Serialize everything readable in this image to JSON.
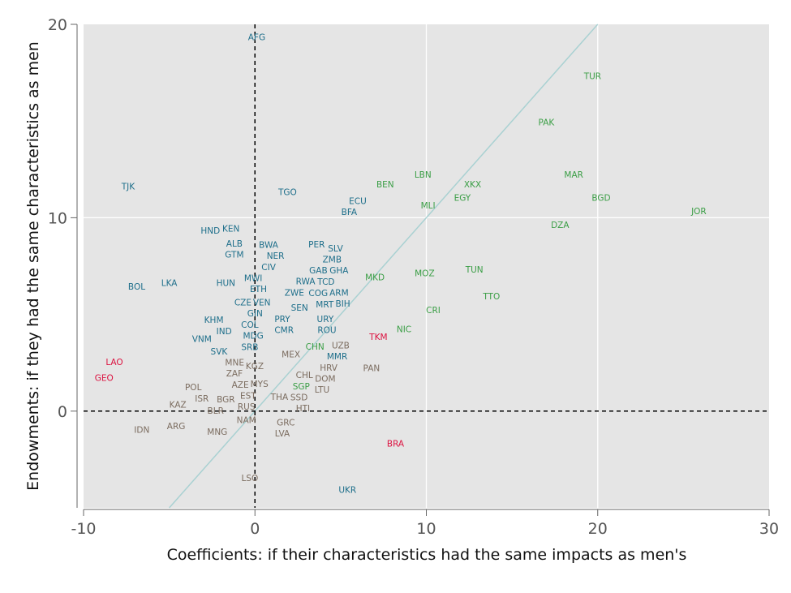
{
  "chart_data": {
    "type": "scatter",
    "title": "",
    "xlabel": "Coefficients: if their characteristics had the same impacts as men's",
    "ylabel": "Endowments: if they had the same characteristics as men",
    "xlim": [
      -10,
      30
    ],
    "ylim": [
      -5,
      20
    ],
    "xticks": [
      "-10",
      "0",
      "10",
      "20",
      "30"
    ],
    "yticks": [
      "0",
      "10",
      "20"
    ],
    "grid": true,
    "reference_lines": {
      "vertical_dashed_x": 0,
      "horizontal_dashed_y": 0,
      "diagonal": "y = x"
    },
    "colors": {
      "teal": "#1d6e8a",
      "green": "#3a9e45",
      "brown": "#7b6c5f",
      "red": "#dc1240",
      "diagonal": "#a9d1d2",
      "panel": "#e5e5e5"
    },
    "points": [
      [
        "AFG",
        0.1,
        19.3,
        "teal"
      ],
      [
        "TUR",
        19.7,
        17.3,
        "green"
      ],
      [
        "PAK",
        17.0,
        14.9,
        "green"
      ],
      [
        "LBN",
        9.8,
        12.2,
        "green"
      ],
      [
        "MAR",
        18.6,
        12.2,
        "green"
      ],
      [
        "BEN",
        7.6,
        11.7,
        "green"
      ],
      [
        "XKX",
        12.7,
        11.7,
        "green"
      ],
      [
        "TJK",
        -7.4,
        11.6,
        "teal"
      ],
      [
        "TGO",
        1.9,
        11.3,
        "teal"
      ],
      [
        "EGY",
        12.1,
        11.0,
        "green"
      ],
      [
        "BGD",
        20.2,
        11.0,
        "green"
      ],
      [
        "ECU",
        6.0,
        10.6,
        "teal"
      ],
      [
        "BFA",
        5.5,
        10.5,
        "teal"
      ],
      [
        "MLI",
        10.1,
        10.6,
        "green"
      ],
      [
        "JOR",
        25.9,
        10.3,
        "green"
      ],
      [
        "DZA",
        17.8,
        9.6,
        "green"
      ],
      [
        "HND",
        -2.6,
        9.3,
        "teal"
      ],
      [
        "KEN",
        -1.4,
        9.4,
        "teal"
      ],
      [
        "PER",
        3.6,
        8.6,
        "teal"
      ],
      [
        "ALB",
        -1.2,
        8.5,
        "teal"
      ],
      [
        "GTM",
        -1.2,
        8.2,
        "teal"
      ],
      [
        "BWA",
        0.8,
        8.2,
        "teal"
      ],
      [
        "NER",
        1.2,
        8.1,
        "teal"
      ],
      [
        "SLV",
        4.7,
        7.8,
        "teal"
      ],
      [
        "CIV",
        0.8,
        7.6,
        "teal"
      ],
      [
        "TUN",
        12.8,
        7.3,
        "green"
      ],
      [
        "MOZ",
        9.9,
        7.1,
        "green"
      ],
      [
        "GAB",
        3.7,
        7.1,
        "teal"
      ],
      [
        "ZMB",
        4.5,
        7.2,
        "teal"
      ],
      [
        "GHA",
        4.9,
        7.0,
        "teal"
      ],
      [
        "TCD",
        4.1,
        6.8,
        "teal"
      ],
      [
        "MKD",
        7.0,
        6.9,
        "green"
      ],
      [
        "BOL",
        -6.9,
        6.4,
        "teal"
      ],
      [
        "LKA",
        -5.0,
        6.6,
        "teal"
      ],
      [
        "HUN",
        -1.7,
        6.6,
        "teal"
      ],
      [
        "MWI",
        -0.1,
        6.6,
        "teal"
      ],
      [
        "ETH",
        0.2,
        6.6,
        "teal"
      ],
      [
        "RWA",
        3.0,
        6.5,
        "teal"
      ],
      [
        "COG",
        3.8,
        6.4,
        "teal"
      ],
      [
        "ARM",
        4.8,
        6.5,
        "teal"
      ],
      [
        "ZWE",
        2.3,
        6.3,
        "teal"
      ],
      [
        "TTO",
        13.8,
        5.9,
        "green"
      ],
      [
        "BIH",
        5.1,
        6.0,
        "teal"
      ],
      [
        "MRT",
        4.1,
        5.7,
        "teal"
      ],
      [
        "CZE",
        -0.6,
        5.5,
        "teal"
      ],
      [
        "VEN",
        0.3,
        5.2,
        "teal"
      ],
      [
        "SEN",
        2.6,
        5.3,
        "teal"
      ],
      [
        "CRI",
        10.4,
        5.2,
        "green"
      ],
      [
        "GIN",
        0.0,
        4.9,
        "teal"
      ],
      [
        "COL",
        -0.3,
        4.6,
        "teal"
      ],
      [
        "PRY",
        1.6,
        4.7,
        "teal"
      ],
      [
        "URY",
        4.1,
        4.7,
        "teal"
      ],
      [
        "KHM",
        -2.4,
        4.5,
        "teal"
      ],
      [
        "IND",
        -1.8,
        4.3,
        "teal"
      ],
      [
        "ROU",
        4.2,
        4.2,
        "teal"
      ],
      [
        "CMR",
        1.7,
        4.2,
        "teal"
      ],
      [
        "NIC",
        8.7,
        4.2,
        "green"
      ],
      [
        "MDG",
        -0.1,
        4.0,
        "teal"
      ],
      [
        "TKM",
        7.2,
        3.8,
        "red"
      ],
      [
        "VNM",
        -3.1,
        3.7,
        "teal"
      ],
      [
        "SRB",
        -0.3,
        3.6,
        "teal"
      ],
      [
        "CHN",
        3.5,
        3.3,
        "green"
      ],
      [
        "UZB",
        5.0,
        3.2,
        "brown"
      ],
      [
        "SVK",
        -2.1,
        3.0,
        "teal"
      ],
      [
        "MEX",
        2.1,
        2.9,
        "brown"
      ],
      [
        "LAO",
        -8.2,
        2.5,
        "red"
      ],
      [
        "MMR",
        4.8,
        2.6,
        "teal"
      ],
      [
        "MNE",
        -1.0,
        2.3,
        "brown"
      ],
      [
        "KGZ",
        -0.2,
        2.3,
        "brown"
      ],
      [
        "PAN",
        6.8,
        2.2,
        "brown"
      ],
      [
        "HRV",
        4.3,
        2.0,
        "brown"
      ],
      [
        "GEO",
        -8.8,
        1.7,
        "red"
      ],
      [
        "ZAF",
        -1.2,
        1.7,
        "brown"
      ],
      [
        "CHL",
        2.9,
        1.8,
        "brown"
      ],
      [
        "DOM",
        4.1,
        1.8,
        "brown"
      ],
      [
        "AZE",
        -0.7,
        1.5,
        "brown"
      ],
      [
        "LTU",
        3.9,
        1.5,
        "brown"
      ],
      [
        "MYS",
        0.1,
        1.3,
        "brown"
      ],
      [
        "SGP",
        2.7,
        1.3,
        "green"
      ],
      [
        "POL",
        -3.6,
        1.1,
        "brown"
      ],
      [
        "EST",
        -0.4,
        1.0,
        "brown"
      ],
      [
        "ISR",
        -3.1,
        0.7,
        "brown"
      ],
      [
        "THA",
        1.5,
        0.7,
        "brown"
      ],
      [
        "BGR",
        -1.7,
        0.5,
        "brown"
      ],
      [
        "RUS",
        -0.5,
        0.3,
        "brown"
      ],
      [
        "SSD",
        2.5,
        0.5,
        "brown"
      ],
      [
        "KAZ",
        -4.5,
        0.3,
        "brown"
      ],
      [
        "BLR",
        -2.3,
        0.1,
        "brown"
      ],
      [
        "HTI",
        2.8,
        0.3,
        "brown"
      ],
      [
        "NAM",
        -0.5,
        -0.5,
        "brown"
      ],
      [
        "ARG",
        -4.6,
        -0.8,
        "brown"
      ],
      [
        "IDN",
        -6.6,
        -1.0,
        "brown"
      ],
      [
        "GRC",
        1.8,
        -0.8,
        "brown"
      ],
      [
        "LVA",
        1.6,
        -1.0,
        "brown"
      ],
      [
        "MNG",
        -2.2,
        -1.1,
        "brown"
      ],
      [
        "BRA",
        8.2,
        -1.7,
        "red"
      ],
      [
        "LSO",
        -0.3,
        -3.5,
        "brown"
      ],
      [
        "UKR",
        5.4,
        -4.1,
        "teal"
      ]
    ]
  }
}
